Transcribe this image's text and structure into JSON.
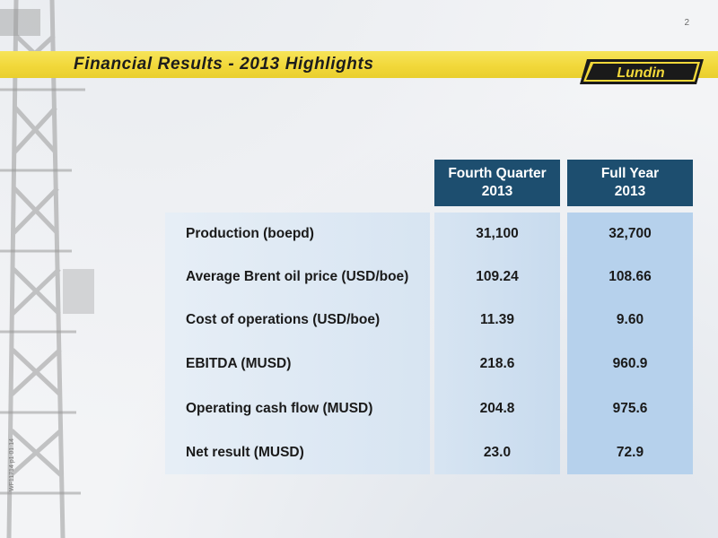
{
  "page_number": "2",
  "title": "Financial Results - 2013 Highlights",
  "logo_text": "Lundin",
  "side_code": "WF11714 p1 01.14",
  "table": {
    "columns": [
      "Fourth Quarter\n2013",
      "Full Year\n2013"
    ],
    "rows": [
      {
        "label": "Production (boepd)",
        "q4": "31,100",
        "fy": "32,700"
      },
      {
        "label": "Average Brent oil price (USD/boe)",
        "q4": "109.24",
        "fy": "108.66"
      },
      {
        "label": "Cost of operations (USD/boe)",
        "q4": "11.39",
        "fy": "9.60"
      },
      {
        "label": "EBITDA (MUSD)",
        "q4": "218.6",
        "fy": "960.9"
      },
      {
        "label": "Operating cash flow (MUSD)",
        "q4": "204.8",
        "fy": "975.6"
      },
      {
        "label": "Net result (MUSD)",
        "q4": "23.0",
        "fy": "72.9"
      }
    ]
  },
  "colors": {
    "header_fill": "#1d4e6f",
    "title_band": "#f2d83a",
    "full_year_column": "#b6d1ec"
  }
}
